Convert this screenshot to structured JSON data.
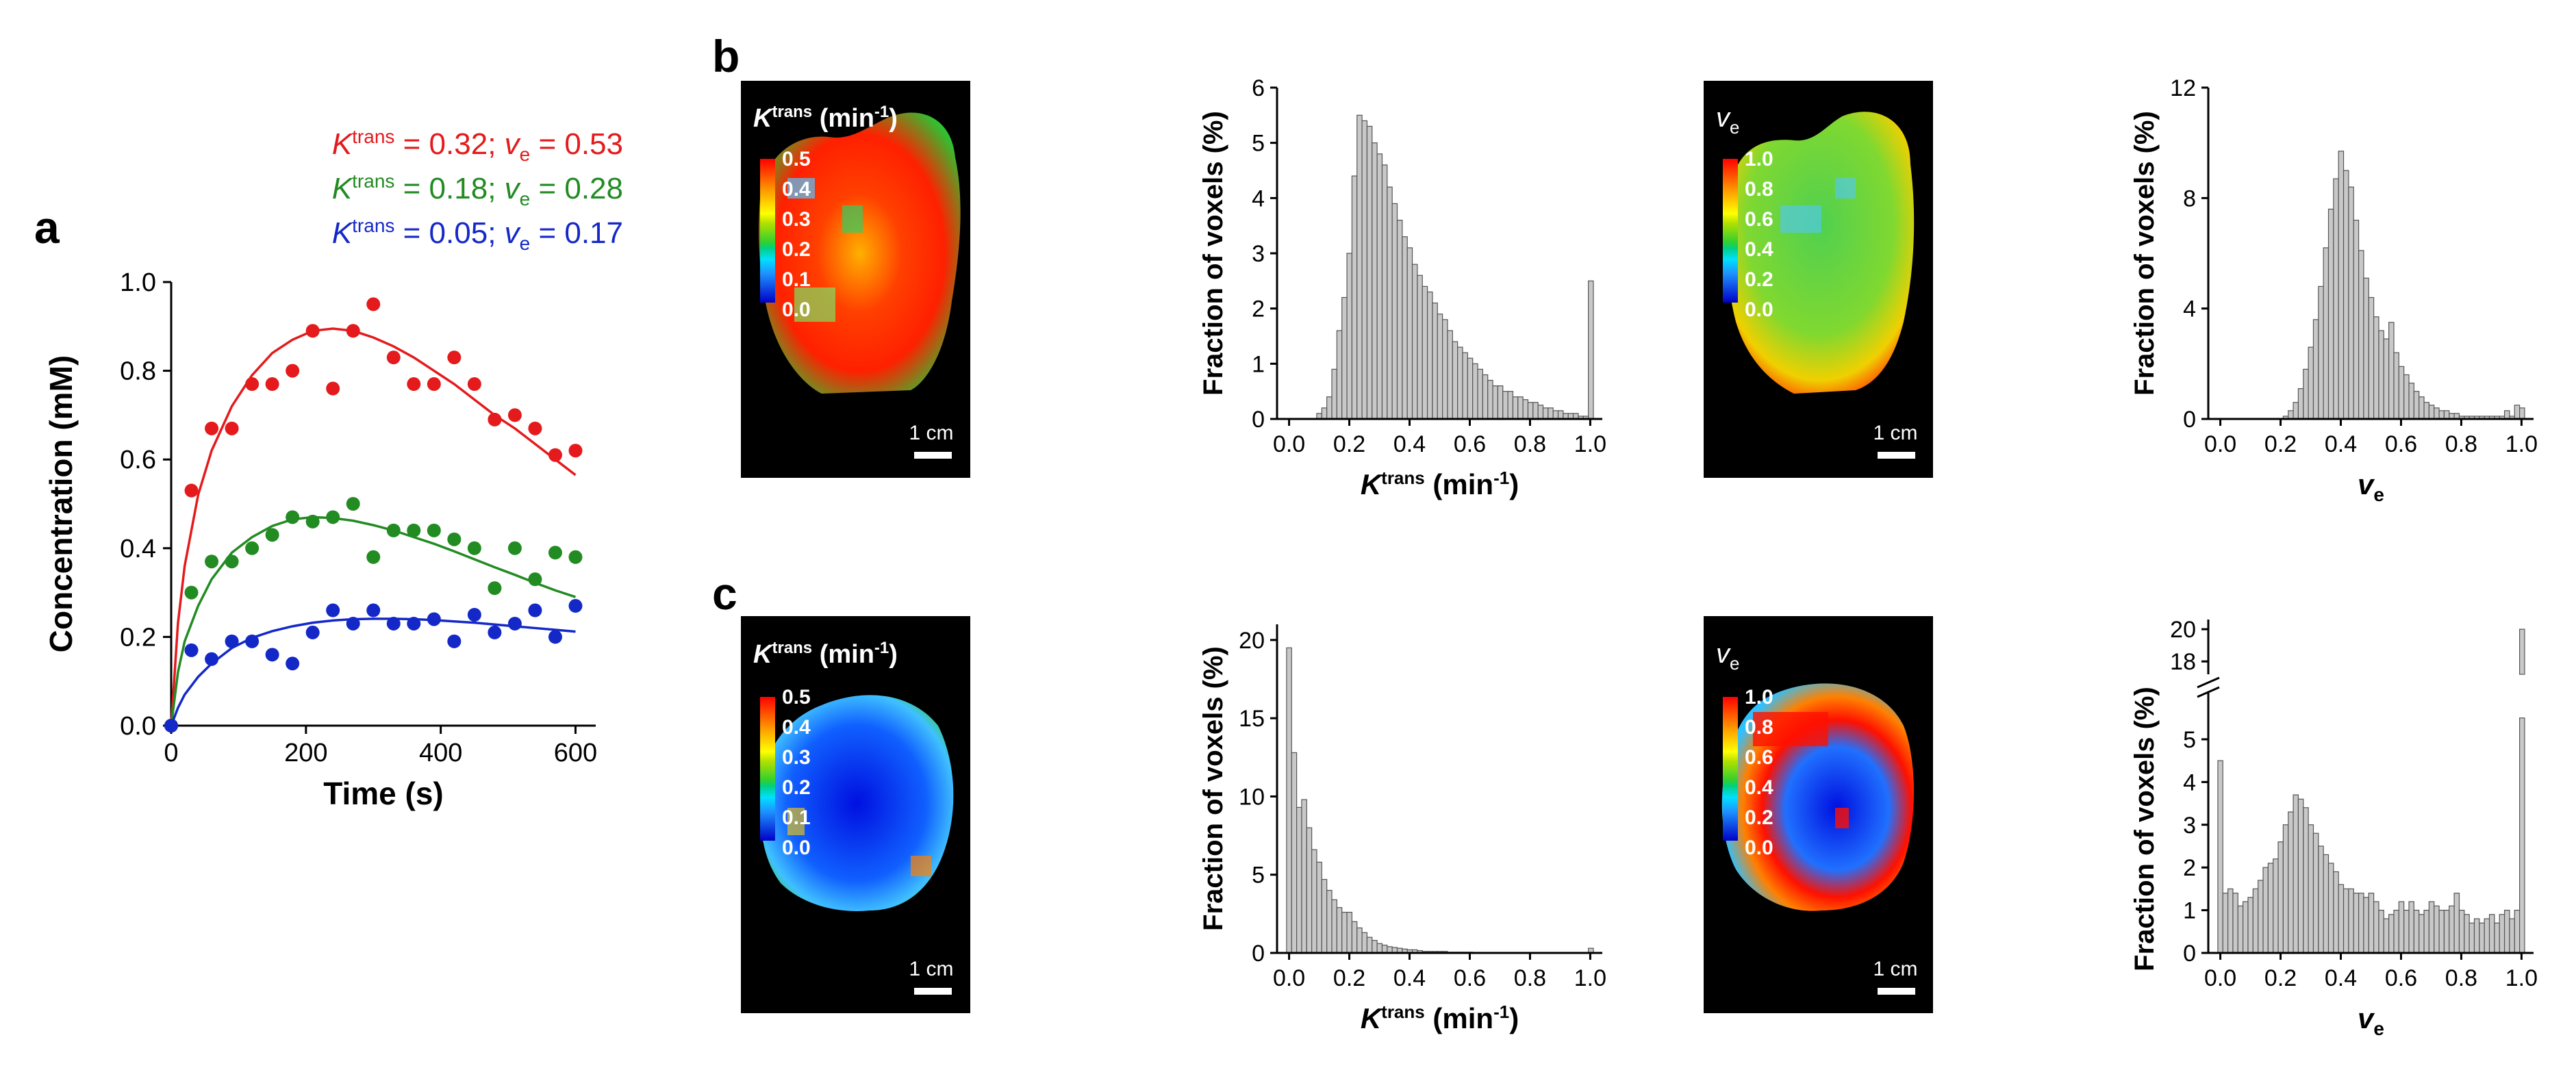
{
  "panel_labels": {
    "a": "a",
    "b": "b",
    "c": "c"
  },
  "colors": {
    "red": "#e41a1c",
    "green": "#228b22",
    "blue": "#1428c8",
    "bar_fill": "#c8c8c8",
    "bar_stroke": "#555555"
  },
  "legend": [
    {
      "k": "K",
      "sup": "trans",
      "mid": " = 0.32; ",
      "v": "v",
      "sub": "e",
      "tail": " = 0.53",
      "color": "#e41a1c"
    },
    {
      "k": "K",
      "sup": "trans",
      "mid": " = 0.18; ",
      "v": "v",
      "sub": "e",
      "tail": " = 0.28",
      "color": "#228b22"
    },
    {
      "k": "K",
      "sup": "trans",
      "mid": " = 0.05; ",
      "v": "v",
      "sub": "e",
      "tail": " = 0.17",
      "color": "#1428c8"
    }
  ],
  "maps": {
    "ktrans_title": "K",
    "ktrans_sup": "trans",
    "ktrans_unit": " (min",
    "ktrans_unit_sup": "-1",
    "ktrans_close": ")",
    "ve_title": "v",
    "ve_sub": "e",
    "ktrans_scale": [
      "0.5",
      "0.4",
      "0.3",
      "0.2",
      "0.1",
      "0.0"
    ],
    "ve_scale": [
      "1.0",
      "0.8",
      "0.6",
      "0.4",
      "0.2",
      "0.0"
    ],
    "scalebar": "1 cm"
  },
  "chart_data": [
    {
      "id": "a",
      "type": "scatter",
      "title": "",
      "xlabel": "Time (s)",
      "ylabel": "Concentration (mM)",
      "xlim": [
        0,
        630
      ],
      "ylim": [
        0,
        1.0
      ],
      "xticks": [
        0,
        200,
        400,
        600
      ],
      "yticks": [
        0.0,
        0.2,
        0.4,
        0.6,
        0.8,
        1.0
      ],
      "xtick_labels": [
        "0",
        "200",
        "400",
        "600"
      ],
      "ytick_labels": [
        "0.0",
        "0.2",
        "0.4",
        "0.6",
        "0.8",
        "1.0"
      ],
      "series": [
        {
          "name": "Ktrans = 0.32; ve = 0.53",
          "color": "#e41a1c",
          "x": [
            0,
            30,
            60,
            90,
            120,
            150,
            180,
            210,
            240,
            270,
            300,
            330,
            360,
            390,
            420,
            450,
            480,
            510,
            540,
            570,
            600
          ],
          "y": [
            0,
            0.53,
            0.67,
            0.67,
            0.77,
            0.77,
            0.8,
            0.89,
            0.76,
            0.89,
            0.95,
            0.83,
            0.77,
            0.77,
            0.83,
            0.77,
            0.69,
            0.7,
            0.67,
            0.61,
            0.62
          ],
          "fit_x": [
            0,
            10,
            20,
            40,
            60,
            90,
            120,
            150,
            180,
            210,
            240,
            270,
            300,
            330,
            360,
            390,
            420,
            450,
            480,
            510,
            540,
            570,
            600
          ],
          "fit_y": [
            0,
            0.23,
            0.36,
            0.52,
            0.62,
            0.72,
            0.79,
            0.84,
            0.87,
            0.89,
            0.895,
            0.89,
            0.875,
            0.855,
            0.83,
            0.8,
            0.77,
            0.735,
            0.7,
            0.67,
            0.635,
            0.6,
            0.565
          ]
        },
        {
          "name": "Ktrans = 0.18; ve = 0.28",
          "color": "#228b22",
          "x": [
            0,
            30,
            60,
            90,
            120,
            150,
            180,
            210,
            240,
            270,
            300,
            330,
            360,
            390,
            420,
            450,
            480,
            510,
            540,
            570,
            600
          ],
          "y": [
            0,
            0.3,
            0.37,
            0.37,
            0.4,
            0.43,
            0.47,
            0.46,
            0.47,
            0.5,
            0.38,
            0.44,
            0.44,
            0.44,
            0.42,
            0.4,
            0.31,
            0.4,
            0.33,
            0.39,
            0.38
          ],
          "fit_x": [
            0,
            10,
            20,
            40,
            60,
            90,
            120,
            150,
            180,
            210,
            240,
            270,
            300,
            330,
            360,
            390,
            420,
            450,
            480,
            510,
            540,
            570,
            600
          ],
          "fit_y": [
            0,
            0.12,
            0.19,
            0.27,
            0.33,
            0.39,
            0.425,
            0.45,
            0.465,
            0.47,
            0.468,
            0.462,
            0.452,
            0.44,
            0.425,
            0.41,
            0.393,
            0.375,
            0.357,
            0.34,
            0.322,
            0.305,
            0.29
          ]
        },
        {
          "name": "Ktrans = 0.05; ve = 0.17",
          "color": "#1428c8",
          "x": [
            0,
            30,
            60,
            90,
            120,
            150,
            180,
            210,
            240,
            270,
            300,
            330,
            360,
            390,
            420,
            450,
            480,
            510,
            540,
            570,
            600
          ],
          "y": [
            0,
            0.17,
            0.15,
            0.19,
            0.19,
            0.16,
            0.14,
            0.21,
            0.26,
            0.23,
            0.26,
            0.23,
            0.23,
            0.24,
            0.19,
            0.25,
            0.21,
            0.23,
            0.26,
            0.2,
            0.27
          ],
          "fit_x": [
            0,
            10,
            20,
            40,
            60,
            90,
            120,
            150,
            180,
            210,
            240,
            270,
            300,
            330,
            360,
            390,
            420,
            450,
            480,
            510,
            540,
            570,
            600
          ],
          "fit_y": [
            0,
            0.04,
            0.07,
            0.11,
            0.14,
            0.175,
            0.198,
            0.213,
            0.224,
            0.232,
            0.237,
            0.24,
            0.241,
            0.241,
            0.24,
            0.238,
            0.235,
            0.232,
            0.228,
            0.224,
            0.22,
            0.216,
            0.212
          ]
        }
      ]
    },
    {
      "id": "b-ktrans-hist",
      "type": "bar",
      "xlabel": "K",
      "xlabel_sup": "trans",
      "xlabel_unit": " (min",
      "xlabel_unit_sup": "-1",
      "xlabel_close": ")",
      "ylabel": "Fraction of voxels (%)",
      "xlim": [
        -0.04,
        1.04
      ],
      "ylim": [
        0,
        6
      ],
      "xticks": [
        0.0,
        0.2,
        0.4,
        0.6,
        0.8,
        1.0
      ],
      "xtick_labels": [
        "0.0",
        "0.2",
        "0.4",
        "0.6",
        "0.8",
        "1.0"
      ],
      "yticks": [
        0,
        1,
        2,
        3,
        4,
        5,
        6
      ],
      "ytick_labels": [
        "0",
        "1",
        "2",
        "3",
        "4",
        "5",
        "6"
      ],
      "bin_start": 0.0,
      "bin_width": 0.0167,
      "values": [
        0,
        0,
        0,
        0,
        0,
        0,
        0.1,
        0.2,
        0.4,
        0.9,
        1.6,
        2.2,
        3.0,
        4.4,
        5.5,
        5.4,
        5.3,
        5.0,
        4.8,
        4.6,
        4.2,
        3.9,
        3.6,
        3.3,
        3.1,
        2.8,
        2.6,
        2.4,
        2.3,
        2.1,
        1.9,
        1.8,
        1.6,
        1.4,
        1.3,
        1.2,
        1.1,
        1.0,
        0.9,
        0.8,
        0.7,
        0.6,
        0.6,
        0.5,
        0.5,
        0.4,
        0.4,
        0.35,
        0.3,
        0.3,
        0.25,
        0.2,
        0.2,
        0.15,
        0.15,
        0.1,
        0.1,
        0.1,
        0.05,
        0.05,
        2.5
      ]
    },
    {
      "id": "b-ve-hist",
      "type": "bar",
      "xlabel": "v",
      "xlabel_sub": "e",
      "ylabel": "Fraction of voxels (%)",
      "xlim": [
        -0.04,
        1.04
      ],
      "ylim": [
        0,
        12
      ],
      "xticks": [
        0.0,
        0.2,
        0.4,
        0.6,
        0.8,
        1.0
      ],
      "xtick_labels": [
        "0.0",
        "0.2",
        "0.4",
        "0.6",
        "0.8",
        "1.0"
      ],
      "yticks": [
        0,
        4,
        8,
        12
      ],
      "ytick_labels": [
        "0",
        "4",
        "8",
        "12"
      ],
      "bin_start": 0.0,
      "bin_width": 0.0167,
      "values": [
        0,
        0,
        0,
        0,
        0,
        0,
        0,
        0,
        0,
        0,
        0,
        0,
        0,
        0.1,
        0.3,
        0.6,
        1.1,
        1.8,
        2.6,
        3.6,
        4.8,
        6.2,
        7.6,
        8.7,
        9.7,
        9.0,
        8.4,
        7.2,
        6.1,
        5.1,
        4.4,
        3.7,
        3.2,
        2.9,
        3.5,
        2.4,
        1.9,
        1.6,
        1.3,
        1.0,
        0.8,
        0.6,
        0.5,
        0.4,
        0.3,
        0.3,
        0.2,
        0.2,
        0.1,
        0.1,
        0.1,
        0.1,
        0.1,
        0.1,
        0.1,
        0.1,
        0.1,
        0.3,
        0.1,
        0.5,
        0.4
      ]
    },
    {
      "id": "c-ktrans-hist",
      "type": "bar",
      "xlabel": "K",
      "xlabel_sup": "trans",
      "xlabel_unit": " (min",
      "xlabel_unit_sup": "-1",
      "xlabel_close": ")",
      "ylabel": "Fraction of voxels (%)",
      "xlim": [
        -0.04,
        1.04
      ],
      "ylim": [
        0,
        21
      ],
      "xticks": [
        0.0,
        0.2,
        0.4,
        0.6,
        0.8,
        1.0
      ],
      "xtick_labels": [
        "0.0",
        "0.2",
        "0.4",
        "0.6",
        "0.8",
        "1.0"
      ],
      "yticks": [
        0,
        5,
        10,
        15,
        20
      ],
      "ytick_labels": [
        "0",
        "5",
        "10",
        "15",
        "20"
      ],
      "bin_start": 0.0,
      "bin_width": 0.0167,
      "values": [
        19.5,
        12.8,
        9.3,
        9.8,
        8.0,
        6.6,
        5.8,
        4.7,
        4.0,
        3.4,
        2.9,
        2.6,
        2.6,
        2.0,
        1.6,
        1.3,
        1.0,
        0.8,
        0.6,
        0.5,
        0.4,
        0.35,
        0.3,
        0.25,
        0.2,
        0.2,
        0.15,
        0.1,
        0.1,
        0.1,
        0.1,
        0.1,
        0.05,
        0.05,
        0.05,
        0.05,
        0.05,
        0,
        0,
        0,
        0,
        0,
        0,
        0,
        0,
        0,
        0,
        0,
        0,
        0,
        0,
        0,
        0,
        0,
        0,
        0,
        0,
        0,
        0,
        0,
        0.3
      ]
    },
    {
      "id": "c-ve-hist",
      "type": "bar",
      "xlabel": "v",
      "xlabel_sub": "e",
      "ylabel": "Fraction of voxels (%)",
      "xlim": [
        -0.04,
        1.04
      ],
      "ylim": [
        0,
        5.8
      ],
      "axis_break": true,
      "upper_ticks": [
        18,
        20
      ],
      "upper_tick_labels": [
        "18",
        "20"
      ],
      "xticks": [
        0.0,
        0.2,
        0.4,
        0.6,
        0.8,
        1.0
      ],
      "xtick_labels": [
        "0.0",
        "0.2",
        "0.4",
        "0.6",
        "0.8",
        "1.0"
      ],
      "yticks": [
        0,
        1,
        2,
        3,
        4,
        5
      ],
      "ytick_labels": [
        "0",
        "1",
        "2",
        "3",
        "4",
        "5"
      ],
      "bin_start": 0.0,
      "bin_width": 0.0167,
      "values": [
        4.5,
        1.4,
        1.5,
        1.4,
        1.1,
        1.2,
        1.3,
        1.5,
        1.7,
        2.0,
        2.1,
        2.2,
        2.6,
        3.0,
        3.3,
        3.7,
        3.6,
        3.4,
        3.0,
        2.8,
        2.5,
        2.3,
        2.1,
        1.9,
        1.6,
        1.5,
        1.5,
        1.4,
        1.4,
        1.3,
        1.4,
        1.2,
        1.0,
        0.8,
        0.9,
        1.0,
        1.2,
        1.0,
        1.2,
        1.0,
        0.9,
        1.0,
        1.2,
        1.1,
        1.0,
        1.0,
        1.1,
        1.4,
        1.0,
        0.9,
        0.7,
        0.8,
        0.7,
        0.8,
        0.9,
        0.7,
        0.9,
        1.0,
        0.8,
        1.0,
        5.5
      ],
      "last_bar_total": 20
    }
  ]
}
